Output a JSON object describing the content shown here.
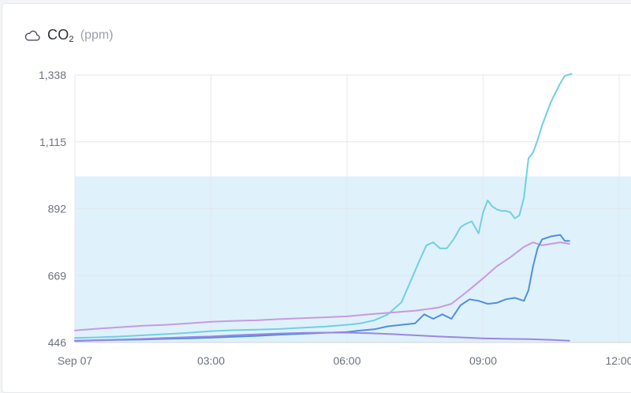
{
  "header": {
    "metric": "CO",
    "metric_sub": "2",
    "unit": "(ppm)",
    "icon": "cloud-icon"
  },
  "chart_data": {
    "type": "line",
    "title": "CO₂ (ppm)",
    "xlabel": "",
    "ylabel": "",
    "y_ticks": [
      446,
      669,
      892,
      1115,
      1338
    ],
    "y_tick_labels": [
      "446",
      "669",
      "892",
      "1,115",
      "1,338"
    ],
    "ylim": [
      446,
      1338
    ],
    "x_ticks_hours": [
      0,
      3,
      6,
      9,
      12
    ],
    "x_tick_labels": [
      "Sep 07",
      "03:00",
      "06:00",
      "09:00",
      "12:00"
    ],
    "x_unit": "hours since Sep 07 00:00",
    "xlim": [
      0,
      12.1
    ],
    "target_band": {
      "low": 446,
      "high": 1000,
      "color": "#dff1fb"
    },
    "grid": true,
    "series": [
      {
        "color": "#6fd0e3",
        "x": [
          0,
          0.5,
          1,
          1.5,
          2,
          2.5,
          3,
          3.5,
          4,
          4.5,
          5,
          5.5,
          6,
          6.3,
          6.6,
          6.9,
          7.2,
          7.4,
          7.6,
          7.75,
          7.9,
          8.05,
          8.2,
          8.35,
          8.5,
          8.6,
          8.75,
          8.9,
          9.0,
          9.1,
          9.2,
          9.3,
          9.4,
          9.5,
          9.6,
          9.7,
          9.8,
          9.9,
          10.0,
          10.1,
          10.2,
          10.3,
          10.4,
          10.5,
          10.6,
          10.7,
          10.8,
          10.95
        ],
        "y": [
          461,
          463,
          466,
          470,
          474,
          478,
          484,
          487,
          489,
          491,
          495,
          499,
          505,
          510,
          520,
          540,
          580,
          650,
          720,
          770,
          780,
          760,
          760,
          790,
          830,
          840,
          850,
          810,
          880,
          920,
          900,
          890,
          885,
          885,
          880,
          860,
          870,
          930,
          1060,
          1080,
          1120,
          1170,
          1210,
          1250,
          1280,
          1310,
          1335,
          1345
        ]
      },
      {
        "color": "#c89ae0",
        "x": [
          0,
          0.5,
          1,
          1.5,
          2,
          2.5,
          3,
          3.5,
          4,
          4.5,
          5,
          5.5,
          6,
          6.5,
          7,
          7.5,
          8,
          8.3,
          8.6,
          9,
          9.3,
          9.6,
          9.9,
          10.1,
          10.3,
          10.5,
          10.7,
          10.9
        ],
        "y": [
          486,
          492,
          497,
          502,
          505,
          510,
          515,
          518,
          520,
          524,
          527,
          530,
          533,
          540,
          546,
          552,
          562,
          575,
          610,
          660,
          700,
          730,
          765,
          780,
          770,
          775,
          780,
          775
        ]
      },
      {
        "color": "#4f8fde",
        "x": [
          0,
          0.5,
          1,
          1.5,
          2,
          2.5,
          3,
          3.5,
          4,
          4.5,
          5,
          5.5,
          6,
          6.3,
          6.6,
          6.9,
          7.2,
          7.5,
          7.7,
          7.9,
          8.1,
          8.3,
          8.5,
          8.7,
          8.9,
          9.1,
          9.3,
          9.5,
          9.7,
          9.9,
          10.0,
          10.1,
          10.2,
          10.3,
          10.5,
          10.7,
          10.8,
          10.9
        ],
        "y": [
          451,
          453,
          455,
          456,
          458,
          460,
          462,
          465,
          468,
          472,
          475,
          478,
          481,
          486,
          490,
          500,
          505,
          510,
          540,
          525,
          540,
          525,
          570,
          590,
          585,
          575,
          578,
          590,
          595,
          585,
          620,
          700,
          760,
          790,
          800,
          805,
          785,
          785
        ]
      },
      {
        "color": "#9a86e6",
        "x": [
          0,
          0.5,
          1,
          1.5,
          2,
          2.5,
          3,
          3.5,
          4,
          4.5,
          5,
          5.5,
          6,
          6.5,
          7,
          7.5,
          8,
          8.5,
          9,
          9.5,
          10,
          10.5,
          10.9
        ],
        "y": [
          452,
          454,
          456,
          458,
          461,
          464,
          466,
          470,
          473,
          476,
          478,
          479,
          479,
          477,
          474,
          470,
          466,
          463,
          460,
          458,
          457,
          455,
          452
        ]
      }
    ]
  }
}
